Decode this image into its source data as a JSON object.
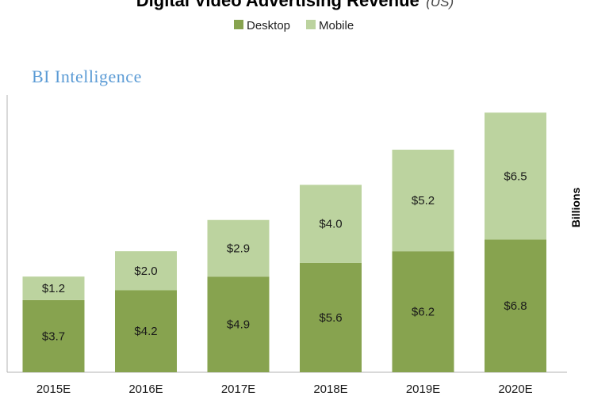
{
  "chart_data": {
    "type": "bar",
    "stacked": true,
    "title": "Digital Video Advertising Revenue",
    "title_suffix": "(US)",
    "brand": "BI Intelligence",
    "ylabel": "Billions",
    "categories": [
      "2015E",
      "2016E",
      "2017E",
      "2018E",
      "2019E",
      "2020E"
    ],
    "series": [
      {
        "name": "Desktop",
        "values": [
          3.7,
          4.2,
          4.9,
          5.6,
          6.2,
          6.8
        ],
        "labels": [
          "$3.7",
          "$4.2",
          "$4.9",
          "$5.6",
          "$6.2",
          "$6.8"
        ],
        "color": "#87a34f"
      },
      {
        "name": "Mobile",
        "values": [
          1.2,
          2.0,
          2.9,
          4.0,
          5.2,
          6.5
        ],
        "labels": [
          "$1.2",
          "$2.0",
          "$2.9",
          "$4.0",
          "$5.2",
          "$6.5"
        ],
        "color": "#bcd39f"
      }
    ],
    "ylim": [
      0,
      14.2
    ],
    "grid": false,
    "legend_position": "top-center"
  }
}
